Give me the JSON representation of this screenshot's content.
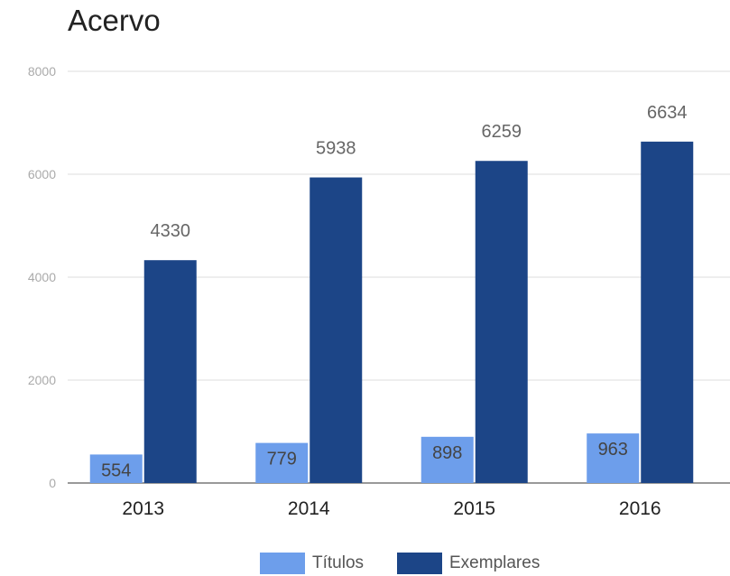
{
  "chart_data": {
    "type": "bar",
    "title": "Acervo",
    "xlabel": "",
    "ylabel": "",
    "categories": [
      "2013",
      "2014",
      "2015",
      "2016"
    ],
    "series": [
      {
        "name": "Títulos",
        "color": "#6d9eeb",
        "values": [
          554,
          779,
          898,
          963
        ]
      },
      {
        "name": "Exemplares",
        "color": "#1c4587",
        "values": [
          4330,
          5938,
          6259,
          6634
        ]
      }
    ],
    "ylim": [
      0,
      8000
    ],
    "yticks": [
      0,
      2000,
      4000,
      6000,
      8000
    ],
    "ytick_labels": [
      "0",
      "2000",
      "4000",
      "6000",
      "8000"
    ],
    "grid": true,
    "legend_position": "bottom",
    "data_labels": true
  }
}
